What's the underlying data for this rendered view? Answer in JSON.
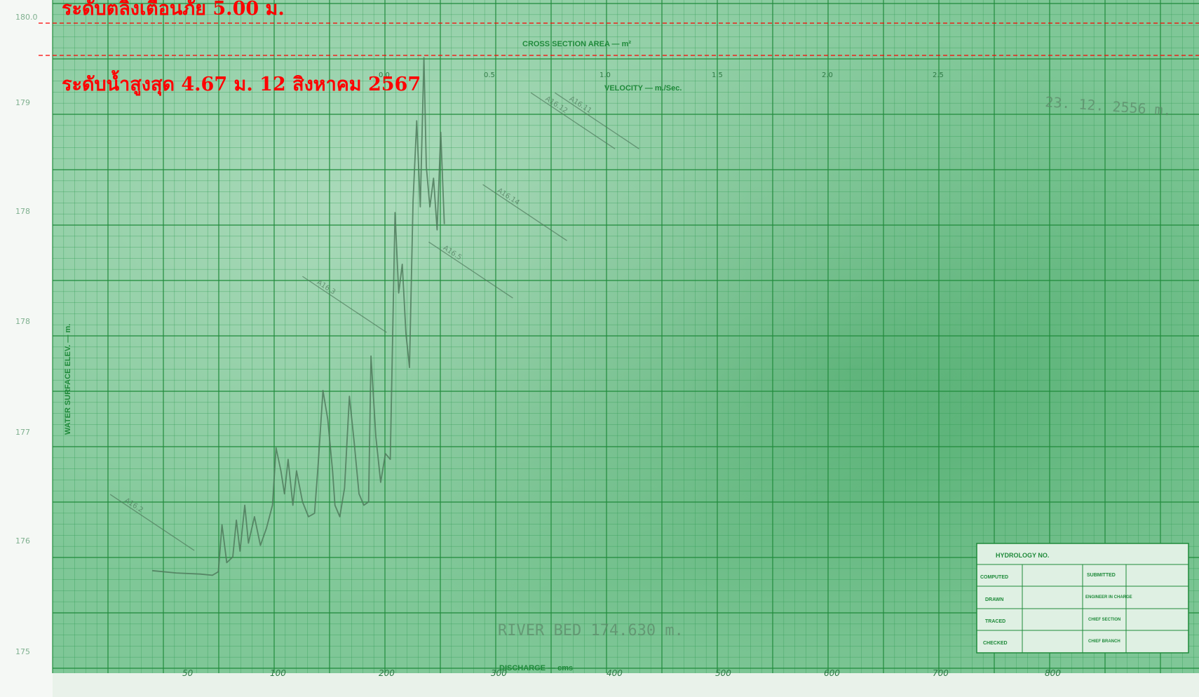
{
  "annotations": {
    "warning_level": "ระดับตลิ่งเตือนภัย 5.00 ม.",
    "max_level": "ระดับน้ำสูงสุด 4.67 ม. 12 สิงหาคม 2567",
    "warning_color": "#ff0000"
  },
  "chart_data": {
    "type": "line",
    "title": "",
    "top_axis_labels": {
      "area": "CROSS SECTION AREA — m²",
      "velocity": "VELOCITY — m./Sec."
    },
    "bottom_axis_label": "DISCHARGE — cms",
    "left_axis_label": "WATER SURFACE ELEV. — m.",
    "y_ticks": [
      "180.0",
      "179",
      "178",
      "178",
      "177",
      "176",
      "175"
    ],
    "x_ticks": [
      "50",
      "100",
      "200",
      "300",
      "400",
      "500",
      "600",
      "700",
      "800"
    ],
    "velocity_ticks": [
      "0.0",
      "0.5",
      "1.0",
      "1.5",
      "2.0",
      "2.5"
    ],
    "river_bed_note": "RIVER BED 174.630 m.",
    "top_right_note": "23. 12. 2556 m.",
    "grid": true,
    "series": [
      {
        "values": [
          [
            80,
            175.38
          ],
          [
            100,
            175.36
          ],
          [
            120,
            175.35
          ],
          [
            130,
            175.34
          ],
          [
            135,
            175.37
          ],
          [
            138,
            175.78
          ],
          [
            142,
            175.45
          ],
          [
            147,
            175.5
          ],
          [
            150,
            175.82
          ],
          [
            153,
            175.55
          ],
          [
            157,
            175.95
          ],
          [
            160,
            175.62
          ],
          [
            165,
            175.85
          ],
          [
            170,
            175.6
          ],
          [
            175,
            175.75
          ],
          [
            180,
            175.95
          ],
          [
            183,
            176.45
          ],
          [
            187,
            176.25
          ],
          [
            190,
            176.05
          ],
          [
            193,
            176.35
          ],
          [
            197,
            175.95
          ],
          [
            200,
            176.25
          ],
          [
            205,
            175.98
          ],
          [
            210,
            175.85
          ],
          [
            215,
            175.88
          ],
          [
            218,
            176.3
          ],
          [
            222,
            176.95
          ],
          [
            226,
            176.7
          ],
          [
            230,
            176.25
          ],
          [
            232,
            175.95
          ],
          [
            236,
            175.85
          ],
          [
            240,
            176.1
          ],
          [
            244,
            176.9
          ],
          [
            248,
            176.5
          ],
          [
            252,
            176.05
          ],
          [
            256,
            175.95
          ],
          [
            260,
            175.98
          ],
          [
            262,
            177.25
          ],
          [
            266,
            176.55
          ],
          [
            270,
            176.15
          ],
          [
            274,
            176.4
          ],
          [
            278,
            176.35
          ],
          [
            282,
            178.5
          ],
          [
            285,
            177.8
          ],
          [
            288,
            178.05
          ],
          [
            291,
            177.45
          ],
          [
            294,
            177.15
          ],
          [
            297,
            178.6
          ],
          [
            300,
            179.3
          ],
          [
            303,
            178.55
          ],
          [
            306,
            179.85
          ],
          [
            308,
            178.9
          ],
          [
            311,
            178.55
          ],
          [
            314,
            178.8
          ],
          [
            317,
            178.35
          ],
          [
            320,
            179.2
          ],
          [
            323,
            178.4
          ]
        ]
      }
    ],
    "fitted_marks": [
      {
        "label": "A16.11",
        "value_x": 450,
        "value_y": 179.3
      },
      {
        "label": "A16.12",
        "value_x": 430,
        "value_y": 179.3
      },
      {
        "label": "A16.14",
        "value_x": 390,
        "value_y": 178.5
      },
      {
        "label": "A16.5",
        "value_x": 345,
        "value_y": 178.0
      },
      {
        "label": "A16.3",
        "value_x": 240,
        "value_y": 177.7
      },
      {
        "label": "A16.2",
        "value_x": 80,
        "value_y": 175.8
      }
    ]
  },
  "title_block": {
    "header": "HYDROLOGY NO.",
    "rows": [
      {
        "left": "COMPUTED",
        "right": "SUBMITTED"
      },
      {
        "left": "DRAWN",
        "right": "ENGINEER IN CHARGE"
      },
      {
        "left": "TRACED",
        "right": "CHIEF SECTION"
      },
      {
        "left": "CHECKED",
        "right": "CHIEF BRANCH"
      }
    ]
  }
}
